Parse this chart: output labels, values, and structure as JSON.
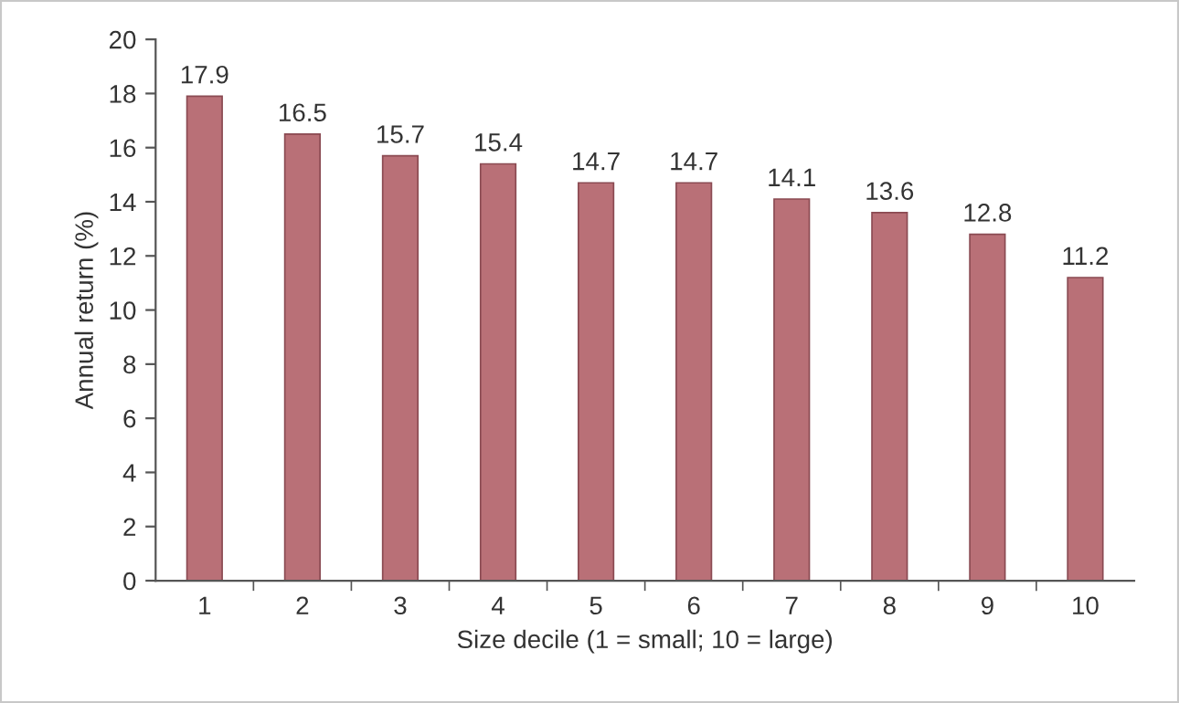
{
  "chart_data": {
    "type": "bar",
    "xlabel": "Size decile (1 = small; 10 = large)",
    "ylabel": "Annual return (%)",
    "categories": [
      "1",
      "2",
      "3",
      "4",
      "5",
      "6",
      "7",
      "8",
      "9",
      "10"
    ],
    "values": [
      17.9,
      16.5,
      15.7,
      15.4,
      14.7,
      14.7,
      14.1,
      13.6,
      12.8,
      11.2
    ],
    "color": "#b97077",
    "ylim": [
      0,
      20
    ],
    "yticks": [
      0,
      2,
      4,
      6,
      8,
      10,
      12,
      14,
      16,
      18,
      20
    ],
    "data_labels": true,
    "grid": false,
    "legend": false
  }
}
